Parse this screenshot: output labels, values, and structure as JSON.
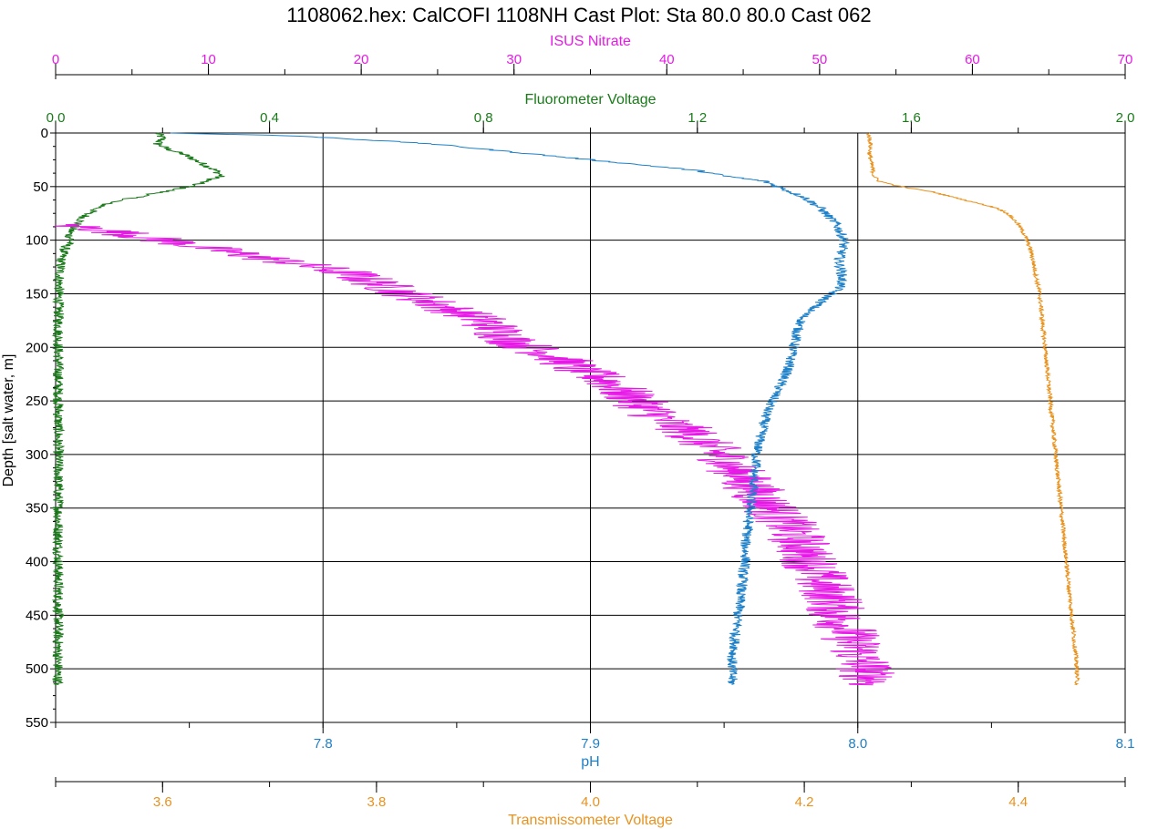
{
  "chart_data": {
    "type": "line",
    "title": "1108062.hex: CalCOFI 1108NH Cast Plot: Sta 80.0 80.0 Cast 062",
    "grid": true,
    "y_axis": {
      "label": "Depth [salt water, m]",
      "range": [
        0,
        550
      ],
      "inverted": true,
      "ticks": [
        0,
        50,
        100,
        150,
        200,
        250,
        300,
        350,
        400,
        450,
        500,
        550
      ],
      "color": "#000000"
    },
    "x_axes": [
      {
        "id": "nitrate",
        "label": "ISUS Nitrate",
        "position": "top-outer",
        "range": [
          0,
          70
        ],
        "ticks": [
          0,
          10,
          20,
          30,
          40,
          50,
          60,
          70
        ],
        "tick_labels": [
          "0",
          "10",
          "20",
          "30",
          "40",
          "50",
          "60",
          "70"
        ],
        "color": "#e619e6"
      },
      {
        "id": "fluor",
        "label": "Fluorometer Voltage",
        "position": "top-inner",
        "range": [
          0.0,
          2.0
        ],
        "ticks": [
          0.0,
          0.4,
          0.8,
          1.2,
          1.6,
          2.0
        ],
        "tick_labels": [
          "0.0",
          "0.4",
          "0.8",
          "1.2",
          "1.6",
          "2.0"
        ],
        "color": "#1a7a1a"
      },
      {
        "id": "ph",
        "label": "pH",
        "position": "bottom-inner",
        "range": [
          7.7,
          8.1
        ],
        "ticks": [
          7.8,
          7.9,
          8.0,
          8.1
        ],
        "tick_labels": [
          "7.8",
          "7.9",
          "8.0",
          "8.1"
        ],
        "color": "#1e80c8"
      },
      {
        "id": "trans",
        "label": "Transmissometer Voltage",
        "position": "bottom-outer",
        "range": [
          3.5,
          4.5
        ],
        "ticks": [
          3.6,
          3.8,
          4.0,
          4.2,
          4.4
        ],
        "tick_labels": [
          "3.6",
          "3.8",
          "4.0",
          "4.2",
          "4.4"
        ],
        "color": "#e8921e"
      }
    ],
    "series": [
      {
        "name": "Fluorometer Voltage",
        "axis": "fluor",
        "color": "#1a7a1a",
        "noise": 0.01,
        "points": [
          [
            0.19,
            0
          ],
          [
            0.2,
            5
          ],
          [
            0.19,
            10
          ],
          [
            0.21,
            15
          ],
          [
            0.24,
            20
          ],
          [
            0.26,
            25
          ],
          [
            0.28,
            30
          ],
          [
            0.3,
            35
          ],
          [
            0.31,
            40
          ],
          [
            0.28,
            45
          ],
          [
            0.25,
            50
          ],
          [
            0.2,
            55
          ],
          [
            0.15,
            60
          ],
          [
            0.1,
            65
          ],
          [
            0.08,
            70
          ],
          [
            0.06,
            75
          ],
          [
            0.05,
            80
          ],
          [
            0.04,
            85
          ],
          [
            0.03,
            90
          ],
          [
            0.025,
            95
          ],
          [
            0.03,
            100
          ],
          [
            0.02,
            105
          ],
          [
            0.015,
            110
          ],
          [
            0.012,
            115
          ],
          [
            0.01,
            120
          ],
          [
            0.008,
            130
          ],
          [
            0.006,
            150
          ],
          [
            0.005,
            200
          ],
          [
            0.005,
            250
          ],
          [
            0.005,
            300
          ],
          [
            0.005,
            350
          ],
          [
            0.005,
            400
          ],
          [
            0.005,
            450
          ],
          [
            0.004,
            500
          ],
          [
            0.004,
            515
          ]
        ]
      },
      {
        "name": "ISUS Nitrate",
        "axis": "nitrate",
        "color": "#e619e6",
        "noise": 2.0,
        "points": [
          [
            0,
            85
          ],
          [
            3,
            90
          ],
          [
            5,
            95
          ],
          [
            7,
            100
          ],
          [
            9,
            105
          ],
          [
            11,
            110
          ],
          [
            13,
            115
          ],
          [
            15,
            120
          ],
          [
            17,
            125
          ],
          [
            19,
            130
          ],
          [
            20,
            135
          ],
          [
            21,
            140
          ],
          [
            22,
            145
          ],
          [
            23,
            150
          ],
          [
            24,
            155
          ],
          [
            25,
            160
          ],
          [
            26,
            165
          ],
          [
            27,
            170
          ],
          [
            28,
            175
          ],
          [
            28.5,
            180
          ],
          [
            29,
            185
          ],
          [
            29.5,
            190
          ],
          [
            30,
            195
          ],
          [
            31,
            200
          ],
          [
            32,
            205
          ],
          [
            33,
            210
          ],
          [
            33.5,
            215
          ],
          [
            34,
            220
          ],
          [
            35,
            225
          ],
          [
            36,
            230
          ],
          [
            36.5,
            235
          ],
          [
            37,
            240
          ],
          [
            37.5,
            245
          ],
          [
            38,
            250
          ],
          [
            38.5,
            255
          ],
          [
            39,
            260
          ],
          [
            39.5,
            265
          ],
          [
            40,
            270
          ],
          [
            41,
            275
          ],
          [
            41.5,
            280
          ],
          [
            42,
            285
          ],
          [
            42.5,
            290
          ],
          [
            43,
            295
          ],
          [
            43.5,
            300
          ],
          [
            44,
            305
          ],
          [
            44,
            310
          ],
          [
            44.5,
            315
          ],
          [
            45,
            320
          ],
          [
            45,
            325
          ],
          [
            45.5,
            330
          ],
          [
            46,
            335
          ],
          [
            46,
            340
          ],
          [
            46.5,
            345
          ],
          [
            47,
            350
          ],
          [
            47,
            355
          ],
          [
            47.5,
            360
          ],
          [
            48,
            365
          ],
          [
            48,
            370
          ],
          [
            48.5,
            375
          ],
          [
            48.5,
            380
          ],
          [
            49,
            385
          ],
          [
            49,
            390
          ],
          [
            49,
            395
          ],
          [
            49.5,
            400
          ],
          [
            49.5,
            405
          ],
          [
            50,
            410
          ],
          [
            50,
            415
          ],
          [
            50,
            420
          ],
          [
            50.5,
            425
          ],
          [
            50.5,
            430
          ],
          [
            51,
            435
          ],
          [
            51,
            440
          ],
          [
            51,
            445
          ],
          [
            51,
            450
          ],
          [
            51.5,
            455
          ],
          [
            51.5,
            460
          ],
          [
            52,
            465
          ],
          [
            52,
            470
          ],
          [
            52,
            475
          ],
          [
            52.5,
            480
          ],
          [
            52.5,
            485
          ],
          [
            52.5,
            490
          ],
          [
            53,
            495
          ],
          [
            53,
            500
          ],
          [
            53,
            505
          ],
          [
            53.5,
            510
          ],
          [
            53.5,
            515
          ]
        ]
      },
      {
        "name": "pH",
        "axis": "ph",
        "color": "#1e80c8",
        "noise": 0.002,
        "points": [
          [
            7.742,
            0
          ],
          [
            7.76,
            1
          ],
          [
            7.78,
            2
          ],
          [
            7.8,
            4
          ],
          [
            7.82,
            7
          ],
          [
            7.84,
            10
          ],
          [
            7.86,
            15
          ],
          [
            7.88,
            20
          ],
          [
            7.9,
            25
          ],
          [
            7.92,
            30
          ],
          [
            7.94,
            35
          ],
          [
            7.95,
            40
          ],
          [
            7.965,
            45
          ],
          [
            7.97,
            50
          ],
          [
            7.975,
            55
          ],
          [
            7.98,
            60
          ],
          [
            7.983,
            65
          ],
          [
            7.986,
            70
          ],
          [
            7.988,
            75
          ],
          [
            7.99,
            80
          ],
          [
            7.992,
            85
          ],
          [
            7.993,
            90
          ],
          [
            7.994,
            95
          ],
          [
            7.995,
            100
          ],
          [
            7.994,
            110
          ],
          [
            7.993,
            120
          ],
          [
            7.994,
            130
          ],
          [
            7.994,
            140
          ],
          [
            7.993,
            145
          ],
          [
            7.99,
            150
          ],
          [
            7.985,
            160
          ],
          [
            7.98,
            170
          ],
          [
            7.978,
            180
          ],
          [
            7.977,
            190
          ],
          [
            7.976,
            200
          ],
          [
            7.975,
            210
          ],
          [
            7.974,
            220
          ],
          [
            7.972,
            230
          ],
          [
            7.97,
            240
          ],
          [
            7.968,
            250
          ],
          [
            7.966,
            260
          ],
          [
            7.965,
            270
          ],
          [
            7.964,
            280
          ],
          [
            7.963,
            290
          ],
          [
            7.962,
            300
          ],
          [
            7.962,
            310
          ],
          [
            7.961,
            320
          ],
          [
            7.961,
            330
          ],
          [
            7.96,
            340
          ],
          [
            7.96,
            350
          ],
          [
            7.959,
            360
          ],
          [
            7.959,
            370
          ],
          [
            7.958,
            380
          ],
          [
            7.958,
            390
          ],
          [
            7.958,
            400
          ],
          [
            7.957,
            410
          ],
          [
            7.957,
            420
          ],
          [
            7.956,
            430
          ],
          [
            7.956,
            440
          ],
          [
            7.955,
            450
          ],
          [
            7.955,
            460
          ],
          [
            7.954,
            470
          ],
          [
            7.954,
            480
          ],
          [
            7.953,
            490
          ],
          [
            7.953,
            500
          ],
          [
            7.953,
            505
          ],
          [
            7.953,
            510
          ],
          [
            7.953,
            515
          ]
        ]
      },
      {
        "name": "Transmissometer Voltage",
        "axis": "trans",
        "color": "#e8921e",
        "noise": 0.002,
        "points": [
          [
            4.26,
            0
          ],
          [
            4.262,
            10
          ],
          [
            4.261,
            20
          ],
          [
            4.263,
            30
          ],
          [
            4.265,
            40
          ],
          [
            4.27,
            45
          ],
          [
            4.29,
            50
          ],
          [
            4.32,
            55
          ],
          [
            4.34,
            60
          ],
          [
            4.36,
            65
          ],
          [
            4.38,
            70
          ],
          [
            4.39,
            75
          ],
          [
            4.395,
            80
          ],
          [
            4.4,
            85
          ],
          [
            4.403,
            90
          ],
          [
            4.406,
            95
          ],
          [
            4.408,
            100
          ],
          [
            4.41,
            105
          ],
          [
            4.412,
            110
          ],
          [
            4.414,
            120
          ],
          [
            4.416,
            130
          ],
          [
            4.418,
            140
          ],
          [
            4.42,
            150
          ],
          [
            4.421,
            160
          ],
          [
            4.422,
            170
          ],
          [
            4.423,
            180
          ],
          [
            4.424,
            190
          ],
          [
            4.425,
            200
          ],
          [
            4.426,
            210
          ],
          [
            4.427,
            220
          ],
          [
            4.428,
            230
          ],
          [
            4.429,
            240
          ],
          [
            4.43,
            250
          ],
          [
            4.431,
            260
          ],
          [
            4.432,
            270
          ],
          [
            4.433,
            280
          ],
          [
            4.434,
            290
          ],
          [
            4.435,
            300
          ],
          [
            4.436,
            310
          ],
          [
            4.437,
            320
          ],
          [
            4.438,
            330
          ],
          [
            4.439,
            340
          ],
          [
            4.44,
            350
          ],
          [
            4.441,
            360
          ],
          [
            4.442,
            370
          ],
          [
            4.443,
            380
          ],
          [
            4.444,
            390
          ],
          [
            4.445,
            400
          ],
          [
            4.446,
            410
          ],
          [
            4.447,
            420
          ],
          [
            4.448,
            430
          ],
          [
            4.449,
            440
          ],
          [
            4.45,
            450
          ],
          [
            4.451,
            460
          ],
          [
            4.452,
            470
          ],
          [
            4.453,
            480
          ],
          [
            4.454,
            490
          ],
          [
            4.455,
            500
          ],
          [
            4.455,
            510
          ],
          [
            4.455,
            515
          ]
        ]
      }
    ]
  }
}
